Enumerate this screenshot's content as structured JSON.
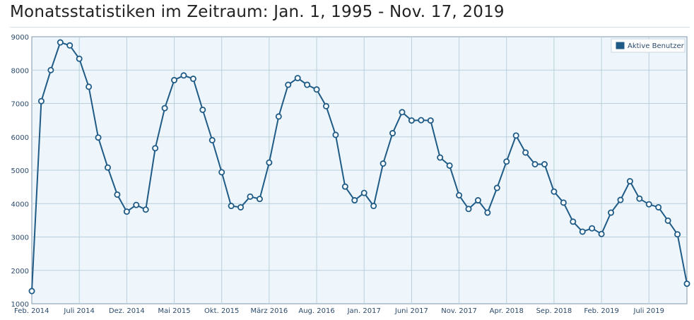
{
  "chart_data": {
    "type": "line",
    "title": "Monatsstatistiken im Zeitraum: Jan. 1, 1995 - Nov. 17, 2019",
    "xlabel": "",
    "ylabel": "",
    "ylim": [
      1000,
      9000
    ],
    "y_ticks": [
      1000,
      2000,
      3000,
      4000,
      5000,
      6000,
      7000,
      8000,
      9000
    ],
    "x_ticks": [
      {
        "label": "Feb. 2014",
        "index": 0
      },
      {
        "label": "Juli 2014",
        "index": 5
      },
      {
        "label": "Dez. 2014",
        "index": 10
      },
      {
        "label": "Mai 2015",
        "index": 15
      },
      {
        "label": "Okt. 2015",
        "index": 20
      },
      {
        "label": "März 2016",
        "index": 25
      },
      {
        "label": "Aug. 2016",
        "index": 30
      },
      {
        "label": "Jan. 2017",
        "index": 35
      },
      {
        "label": "Juni 2017",
        "index": 40
      },
      {
        "label": "Nov. 2017",
        "index": 45
      },
      {
        "label": "Apr. 2018",
        "index": 50
      },
      {
        "label": "Sep. 2018",
        "index": 55
      },
      {
        "label": "Feb. 2019",
        "index": 60
      },
      {
        "label": "Juli 2019",
        "index": 65
      }
    ],
    "grid": true,
    "legend_position": "top-right",
    "series": [
      {
        "name": "Aktive Benutzer",
        "color": "#1f5b86",
        "values": [
          1380,
          7070,
          8000,
          8830,
          8740,
          8340,
          7500,
          5980,
          5080,
          4270,
          3760,
          3960,
          3820,
          5660,
          6860,
          7700,
          7840,
          7740,
          6810,
          5900,
          4940,
          3930,
          3890,
          4210,
          4140,
          5230,
          6610,
          7560,
          7760,
          7560,
          7420,
          6920,
          6060,
          4510,
          4100,
          4320,
          3930,
          5200,
          6110,
          6740,
          6490,
          6500,
          6490,
          5380,
          5140,
          4250,
          3840,
          4100,
          3730,
          4470,
          5260,
          6040,
          5530,
          5180,
          5180,
          4360,
          4030,
          3460,
          3160,
          3260,
          3090,
          3730,
          4110,
          4670,
          4150,
          3980,
          3890,
          3490,
          3080,
          1600
        ]
      }
    ]
  }
}
